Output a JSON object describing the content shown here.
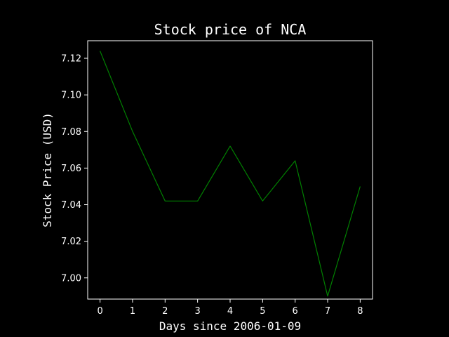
{
  "chart_data": {
    "type": "line",
    "title": "Stock price of NCA",
    "xlabel": "Days since 2006-01-09",
    "ylabel": "Stock Price (USD)",
    "x": [
      0,
      1,
      2,
      3,
      4,
      5,
      6,
      7,
      8
    ],
    "series": [
      {
        "values": [
          7.124,
          7.08,
          7.042,
          7.042,
          7.072,
          7.042,
          7.064,
          6.99,
          7.05
        ]
      }
    ],
    "xticks": [
      "0",
      "1",
      "2",
      "3",
      "4",
      "5",
      "6",
      "7",
      "8"
    ],
    "yticks": [
      "7.00",
      "7.02",
      "7.04",
      "7.06",
      "7.08",
      "7.10",
      "7.12"
    ],
    "xlim": [
      -0.38,
      8.38
    ],
    "ylim": [
      6.9884,
      7.1296
    ],
    "grid": false,
    "colors": {
      "background": "#000000",
      "line": "#008000",
      "axes": "#ffffff",
      "text": "#ffffff"
    }
  }
}
